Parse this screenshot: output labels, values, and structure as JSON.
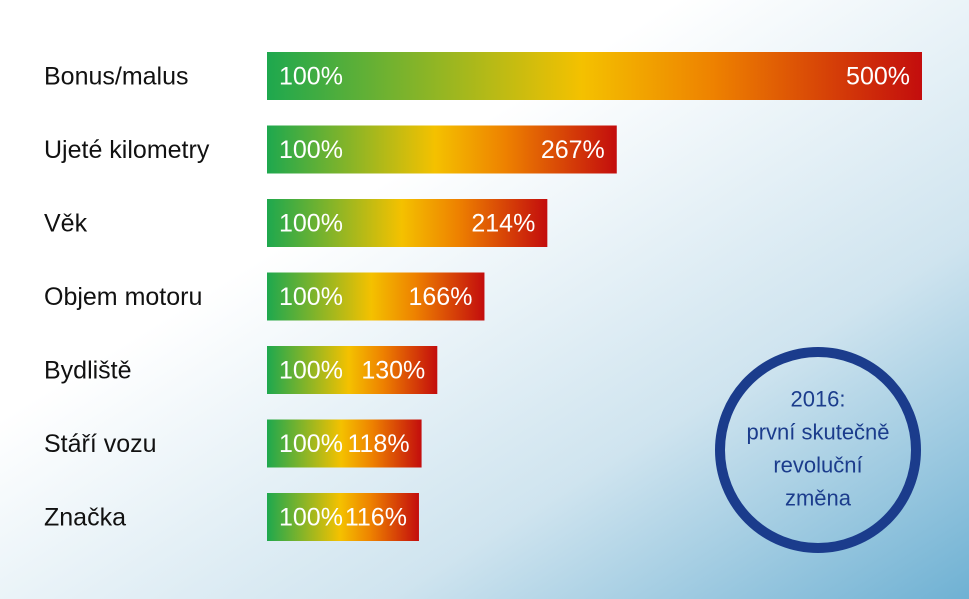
{
  "chart_data": {
    "type": "bar",
    "categories": [
      "Bonus/malus",
      "Ujeté kilometry",
      "Věk",
      "Objem motoru",
      "Bydliště",
      "Stáří vozu",
      "Značka"
    ],
    "values": [
      500,
      267,
      214,
      166,
      130,
      118,
      116
    ],
    "value_labels": [
      "500%",
      "267%",
      "214%",
      "166%",
      "130%",
      "118%",
      "116%"
    ],
    "base_label": "100%",
    "gradient": [
      "#1ea84e",
      "#f4c100",
      "#ee8200",
      "#c30d0d"
    ],
    "annotation": [
      "2016:",
      "první skutečně",
      "revoluční",
      "změna"
    ],
    "annotation_color": "#1b3c8c"
  }
}
